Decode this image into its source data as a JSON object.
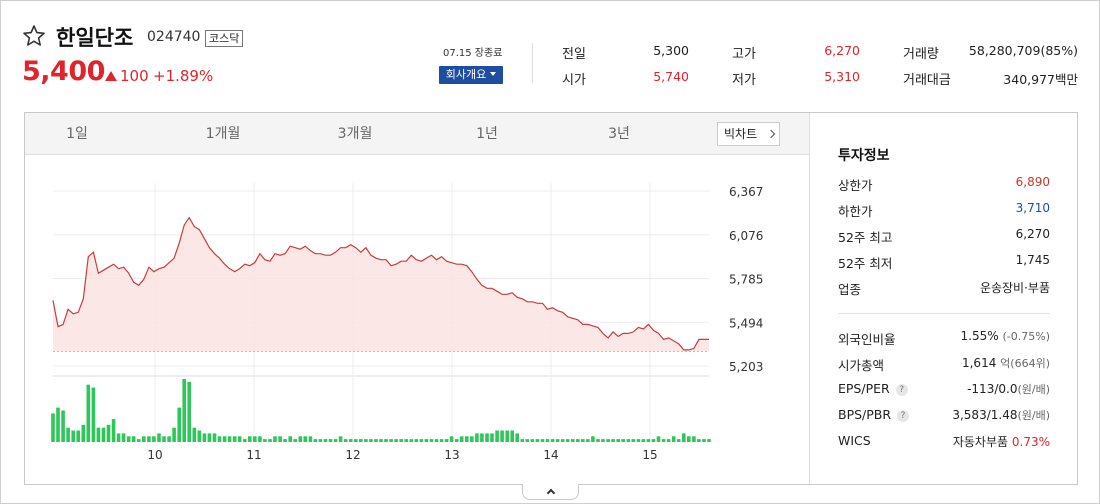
{
  "header": {
    "name": "한일단조",
    "code": "024740",
    "market": "코스닥",
    "price": "5,400",
    "change": "100",
    "change_rate": "+1.89%",
    "close_status": "07.15 장종료",
    "company_button": "회사개요"
  },
  "quote": {
    "prev_label": "전일",
    "prev_value": "5,300",
    "open_label": "시가",
    "open_value": "5,740",
    "high_label": "고가",
    "high_value": "6,270",
    "low_label": "저가",
    "low_value": "5,310",
    "volume_label": "거래량",
    "volume_value": "58,280,709(85%)",
    "amount_label": "거래대금",
    "amount_value": "340,977백만"
  },
  "tabs": [
    {
      "label": "1일",
      "active": true
    },
    {
      "label": "1개월",
      "active": false
    },
    {
      "label": "3개월",
      "active": false
    },
    {
      "label": "1년",
      "active": false
    },
    {
      "label": "3년",
      "active": false
    }
  ],
  "big_chart_label": "빅차트",
  "info": {
    "title": "투자정보",
    "upper_limit_label": "상한가",
    "upper_limit": "6,890",
    "lower_limit_label": "하한가",
    "lower_limit": "3,710",
    "high52_label": "52주 최고",
    "high52": "6,270",
    "low52_label": "52주 최저",
    "low52": "1,745",
    "industry_label": "업종",
    "industry": "운송장비·부품",
    "foreign_label": "외국인비율",
    "foreign_value": "1.55%",
    "foreign_change": "(-0.75%)",
    "mktcap_label": "시가총액",
    "mktcap_value": "1,614",
    "mktcap_unit": "억(664위)",
    "eps_label": "EPS/PER",
    "eps_value": "-113/0.0",
    "eps_unit": "(원/배)",
    "bps_label": "BPS/PBR",
    "bps_value": "3,583/1.48",
    "bps_unit": "(원/배)",
    "wics_label": "WICS",
    "wics_value": "자동차부품",
    "wics_rate": "0.73%"
  },
  "chart_data": {
    "type": "area",
    "y_ticks": [
      "6,367",
      "6,076",
      "5,785",
      "5,494",
      "5,203"
    ],
    "x_ticks": [
      "10",
      "11",
      "12",
      "13",
      "14",
      "15"
    ],
    "ylim": [
      5203,
      6367
    ],
    "baseline": 5300,
    "colors": {
      "line": "#cc3b3b",
      "fill": "#fbe3e3",
      "volume": "#2ec75a"
    },
    "x": [
      0,
      1,
      2,
      3,
      4,
      5,
      6,
      7,
      8,
      9,
      10,
      11,
      12,
      13,
      14,
      15,
      16,
      17,
      18,
      19,
      20,
      21,
      22,
      23,
      24,
      25,
      26,
      27,
      28,
      29,
      30,
      31,
      32,
      33,
      34,
      35,
      36,
      37,
      38,
      39,
      40,
      41,
      42,
      43,
      44,
      45,
      46,
      47,
      48,
      49,
      50,
      51,
      52,
      53,
      54,
      55,
      56,
      57,
      58,
      59,
      60,
      61,
      62,
      63,
      64,
      65,
      66,
      67,
      68,
      69,
      70,
      71,
      72,
      73,
      74,
      75,
      76,
      77,
      78,
      79,
      80,
      81,
      82,
      83,
      84,
      85,
      86,
      87,
      88,
      89,
      90,
      91,
      92,
      93,
      94,
      95,
      96,
      97,
      98,
      99,
      100,
      101,
      102,
      103,
      104,
      105,
      106,
      107,
      108,
      109,
      110,
      111,
      112,
      113,
      114,
      115,
      116,
      117,
      118,
      119,
      120,
      121,
      122,
      123,
      124,
      125,
      126,
      127,
      128,
      129,
      130
    ],
    "price": [
      5640,
      5465,
      5480,
      5580,
      5550,
      5560,
      5650,
      5930,
      5960,
      5820,
      5840,
      5860,
      5880,
      5850,
      5860,
      5820,
      5760,
      5740,
      5780,
      5860,
      5830,
      5850,
      5860,
      5890,
      5920,
      6020,
      6140,
      6190,
      6130,
      6110,
      6050,
      5990,
      5950,
      5920,
      5880,
      5850,
      5830,
      5850,
      5880,
      5870,
      5890,
      5950,
      5910,
      5900,
      5950,
      5940,
      5950,
      6000,
      5990,
      5980,
      6000,
      5970,
      5950,
      5950,
      5940,
      5940,
      5960,
      5990,
      5990,
      6010,
      5990,
      5960,
      5990,
      5940,
      5920,
      5910,
      5910,
      5870,
      5880,
      5900,
      5900,
      5940,
      5910,
      5900,
      5920,
      5940,
      5910,
      5930,
      5900,
      5890,
      5880,
      5880,
      5870,
      5830,
      5780,
      5740,
      5720,
      5720,
      5700,
      5680,
      5680,
      5690,
      5660,
      5650,
      5630,
      5630,
      5620,
      5620,
      5580,
      5590,
      5570,
      5560,
      5530,
      5520,
      5510,
      5480,
      5480,
      5470,
      5460,
      5420,
      5390,
      5430,
      5400,
      5420,
      5420,
      5430,
      5460,
      5450,
      5480,
      5440,
      5420,
      5380,
      5390,
      5370,
      5350,
      5310,
      5310,
      5320,
      5380,
      5380,
      5380
    ],
    "volume": [
      10,
      12,
      11,
      5,
      4,
      4,
      6,
      20,
      19,
      5,
      5,
      6,
      8,
      3,
      3,
      2,
      2,
      1,
      2,
      2,
      2,
      3,
      2,
      2,
      5,
      12,
      22,
      21,
      5,
      4,
      3,
      3,
      3,
      2,
      2,
      2,
      2,
      2,
      1,
      2,
      2,
      2,
      1,
      1,
      2,
      2,
      1,
      2,
      1,
      2,
      2,
      2,
      1,
      1,
      1,
      1,
      1,
      2,
      1,
      1,
      1,
      1,
      1,
      1,
      1,
      1,
      1,
      1,
      1,
      1,
      1,
      1,
      1,
      1,
      1,
      1,
      1,
      1,
      1,
      2,
      1,
      2,
      2,
      2,
      3,
      3,
      3,
      3,
      4,
      4,
      4,
      4,
      3,
      1,
      1,
      1,
      1,
      1,
      1,
      1,
      1,
      1,
      1,
      1,
      1,
      1,
      1,
      2,
      1,
      1,
      1,
      1,
      1,
      1,
      1,
      1,
      1,
      1,
      1,
      1,
      2,
      1,
      1,
      2,
      1,
      3,
      2,
      2,
      1,
      1,
      1
    ]
  }
}
